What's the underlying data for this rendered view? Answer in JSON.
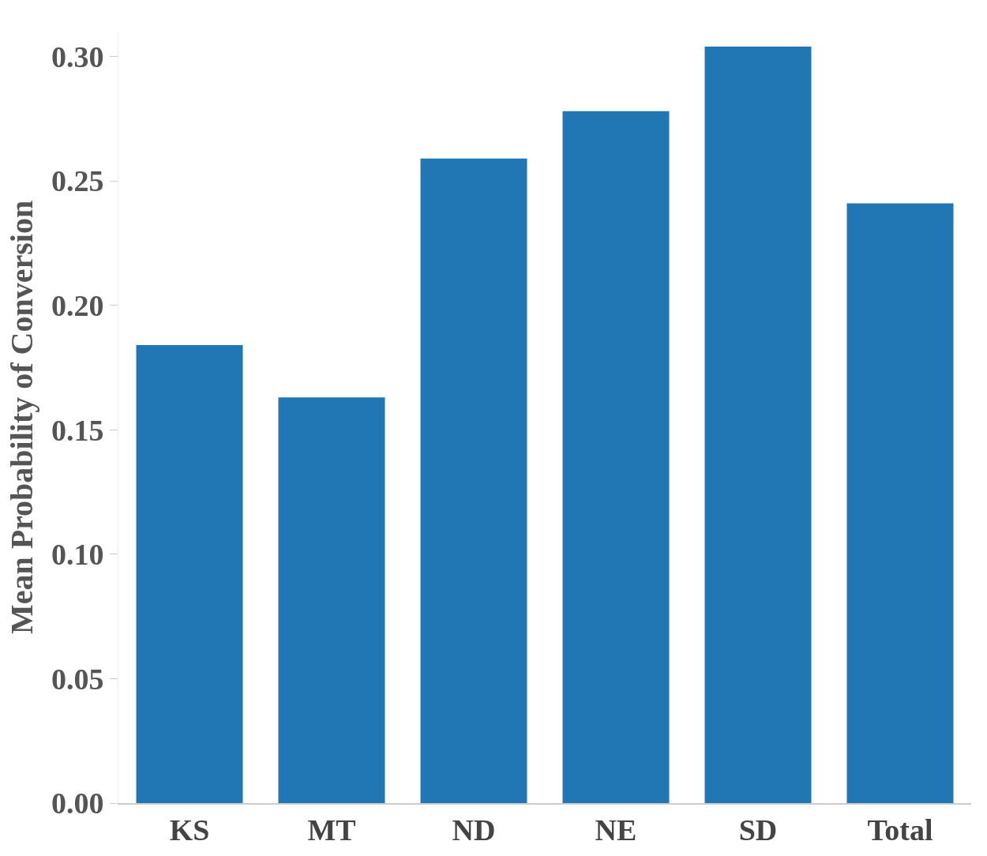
{
  "chart_data": {
    "type": "bar",
    "ylabel": "Mean Probability of Conversion",
    "categories": [
      "KS",
      "MT",
      "ND",
      "NE",
      "SD",
      "Total"
    ],
    "values": [
      0.184,
      0.163,
      0.259,
      0.278,
      0.304,
      0.241
    ],
    "color": "#2077b4",
    "ylim": [
      0,
      0.31
    ],
    "yticks": [
      {
        "value": 0,
        "label": "0.00"
      },
      0.05,
      {
        "value": 0.1,
        "label": "0.10"
      },
      0.15,
      {
        "value": 0.2,
        "label": "0.20"
      },
      0.25,
      {
        "value": 0.3,
        "label": "0.30"
      }
    ],
    "legend": false
  }
}
